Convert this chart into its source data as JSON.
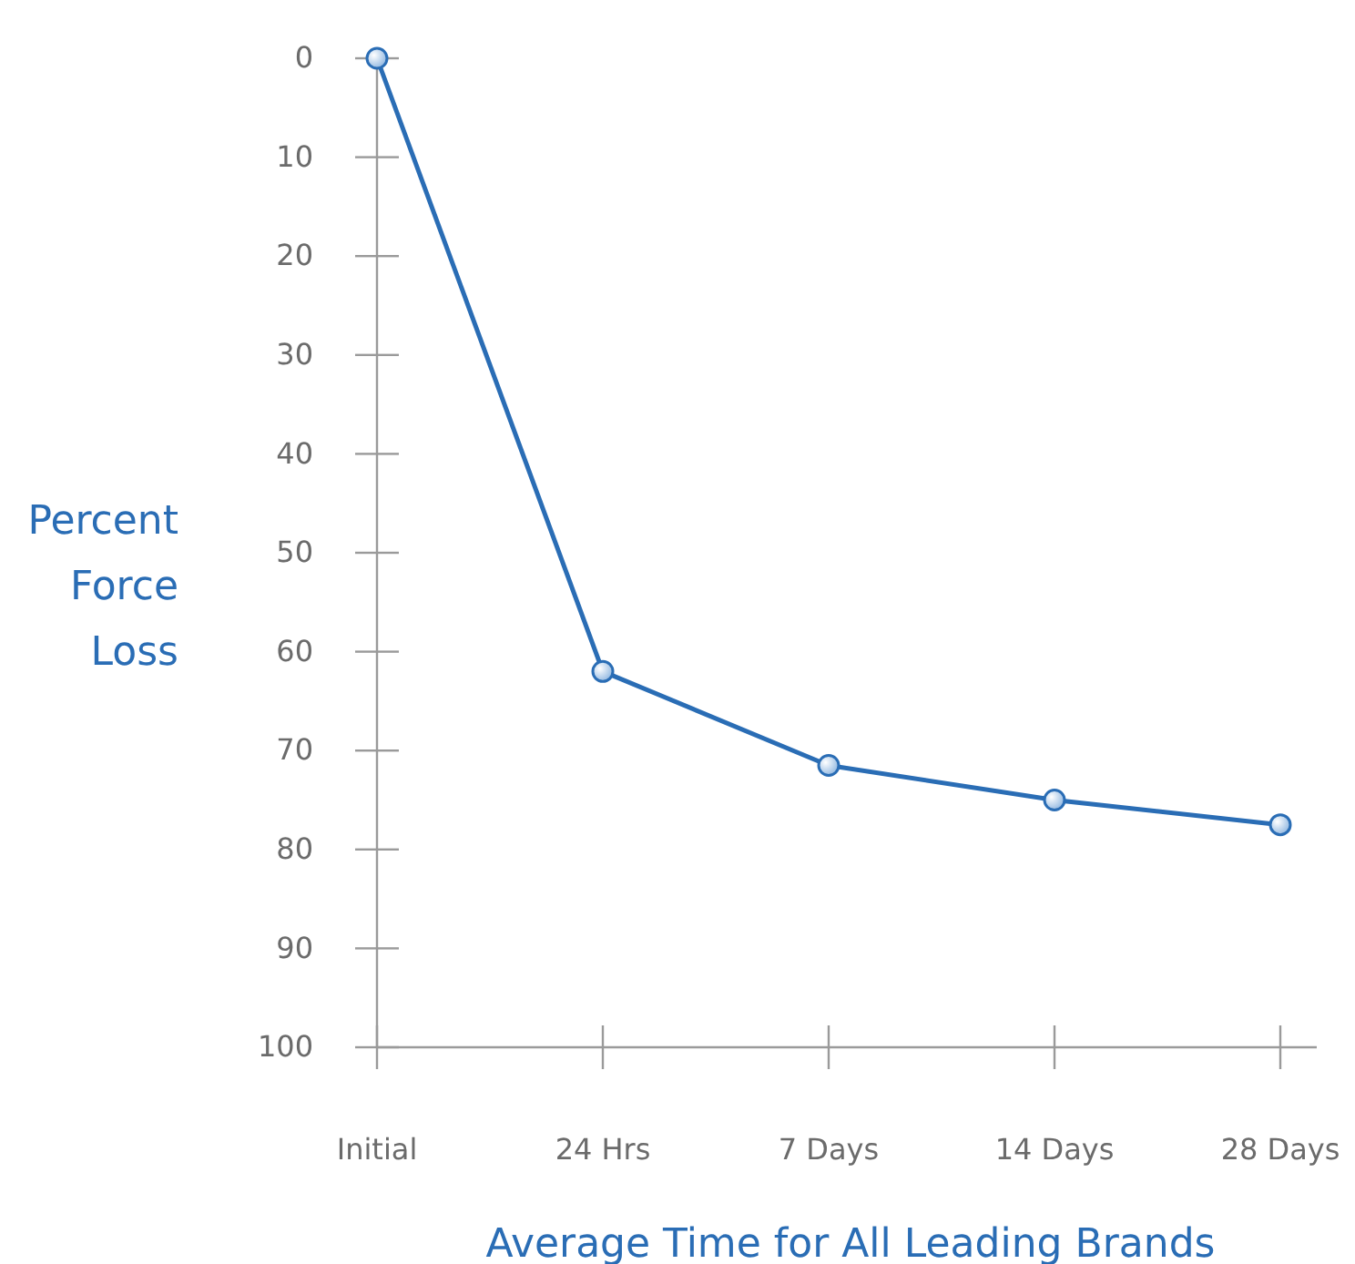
{
  "chart_data": {
    "type": "line",
    "categories": [
      "Initial",
      "24 Hrs",
      "7 Days",
      "14 Days",
      "28 Days"
    ],
    "series": [
      {
        "color": "#2a6db5",
        "values": [
          0,
          62,
          71.5,
          75,
          77.5
        ]
      }
    ],
    "ylim": [
      100,
      0
    ],
    "yticks": [
      0,
      10,
      20,
      30,
      40,
      50,
      60,
      70,
      80,
      90,
      100
    ],
    "ylabel": "Percent Force Loss",
    "xlabel": "Average Time for All Leading Brands",
    "marker": "circle",
    "grid": false
  }
}
